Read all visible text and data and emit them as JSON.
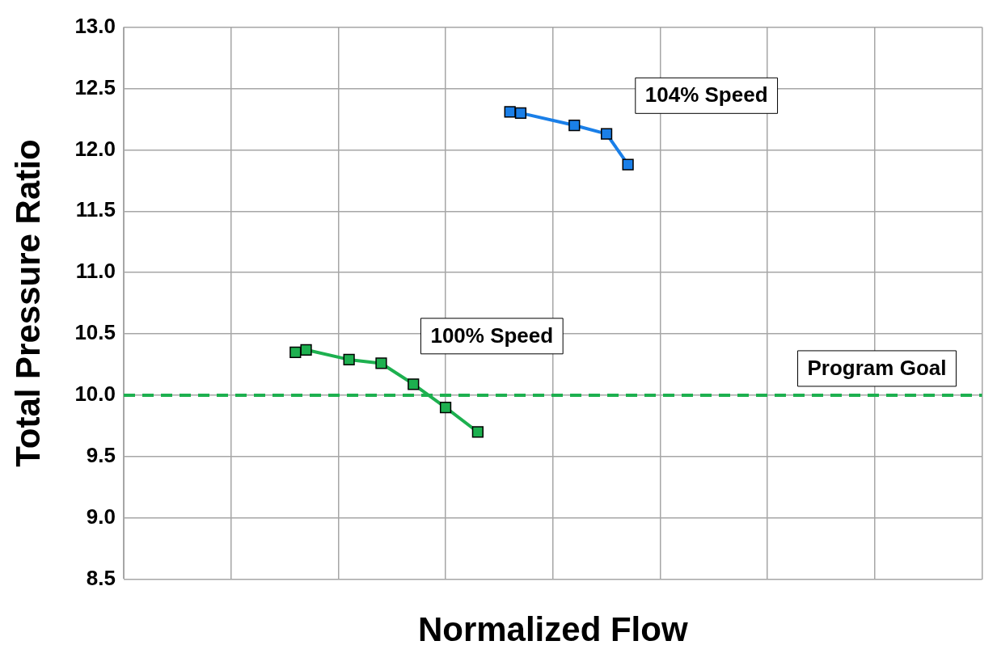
{
  "chart_data": {
    "type": "line",
    "xlabel": "Normalized Flow",
    "ylabel": "Total Pressure Ratio",
    "categories": [
      null,
      null,
      null,
      null,
      null,
      null,
      null,
      null,
      null,
      null,
      null,
      null,
      null,
      null,
      null,
      null,
      null,
      null,
      null,
      null,
      null,
      null,
      null,
      null,
      null,
      null,
      null,
      null,
      null,
      null,
      null,
      null,
      null,
      null,
      null,
      null,
      null,
      null,
      null,
      null,
      null,
      null,
      null,
      null,
      null,
      null,
      null,
      null,
      null,
      null,
      null,
      null,
      null,
      null,
      null,
      null,
      null,
      null,
      null,
      null,
      null,
      null,
      null,
      null,
      null,
      null,
      null,
      null,
      null,
      null,
      null,
      null,
      null,
      null,
      null,
      null,
      null,
      null,
      null,
      null,
      null
    ],
    "ylim": [
      8.5,
      13
    ],
    "yticks": [
      {
        "value": 8.5,
        "label": "8.5"
      },
      {
        "value": 9,
        "label": "9.0"
      },
      {
        "value": 9.5,
        "label": "9.5"
      },
      {
        "value": 10,
        "label": "10.0"
      },
      {
        "value": 10.5,
        "label": "10.5"
      },
      {
        "value": 11,
        "label": "11.0"
      },
      {
        "value": 11.5,
        "label": "11.5"
      },
      {
        "value": 12,
        "label": "12.0"
      },
      {
        "value": 12.5,
        "label": "12.5"
      },
      {
        "value": 13,
        "label": "13.0"
      }
    ],
    "tick_labels": "y",
    "series": [
      {
        "name": "100% Speed",
        "color": "#1db04f",
        "values": [
          null,
          null,
          null,
          null,
          null,
          null,
          null,
          null,
          null,
          null,
          null,
          null,
          null,
          null,
          null,
          null,
          10.35,
          10.37,
          null,
          null,
          null,
          10.29,
          null,
          null,
          10.26,
          null,
          null,
          10.09,
          null,
          null,
          9.9,
          null,
          null,
          9.7,
          null,
          null,
          null,
          null,
          null,
          null,
          null,
          null,
          null,
          null,
          null,
          null,
          null,
          null,
          null,
          null,
          null,
          null,
          null,
          null,
          null,
          null,
          null,
          null,
          null,
          null,
          null,
          null,
          null,
          null,
          null,
          null,
          null,
          null,
          null,
          null,
          null,
          null,
          null,
          null,
          null,
          null,
          null,
          null,
          null,
          null,
          null
        ]
      },
      {
        "name": "104% Speed",
        "color": "#1a7fe8",
        "values": [
          null,
          null,
          null,
          null,
          null,
          null,
          null,
          null,
          null,
          null,
          null,
          null,
          null,
          null,
          null,
          null,
          null,
          null,
          null,
          null,
          null,
          null,
          null,
          null,
          null,
          null,
          null,
          null,
          null,
          null,
          null,
          null,
          null,
          null,
          null,
          null,
          12.31,
          12.3,
          null,
          null,
          null,
          null,
          12.2,
          null,
          null,
          12.13,
          null,
          11.88,
          null,
          null,
          null,
          null,
          null,
          null,
          null,
          null,
          null,
          null,
          null,
          null,
          null,
          null,
          null,
          null,
          null,
          null,
          null,
          null,
          null,
          null,
          null,
          null,
          null,
          null,
          null,
          null,
          null,
          null,
          null,
          null,
          null
        ]
      }
    ],
    "ref_lines": [
      {
        "axis": "y",
        "value": 10,
        "label": "Program Goal",
        "color": "#1db04f",
        "line_style": "dashed"
      }
    ],
    "grid": true,
    "legend": false,
    "marker": "square",
    "line_style": "solid"
  }
}
